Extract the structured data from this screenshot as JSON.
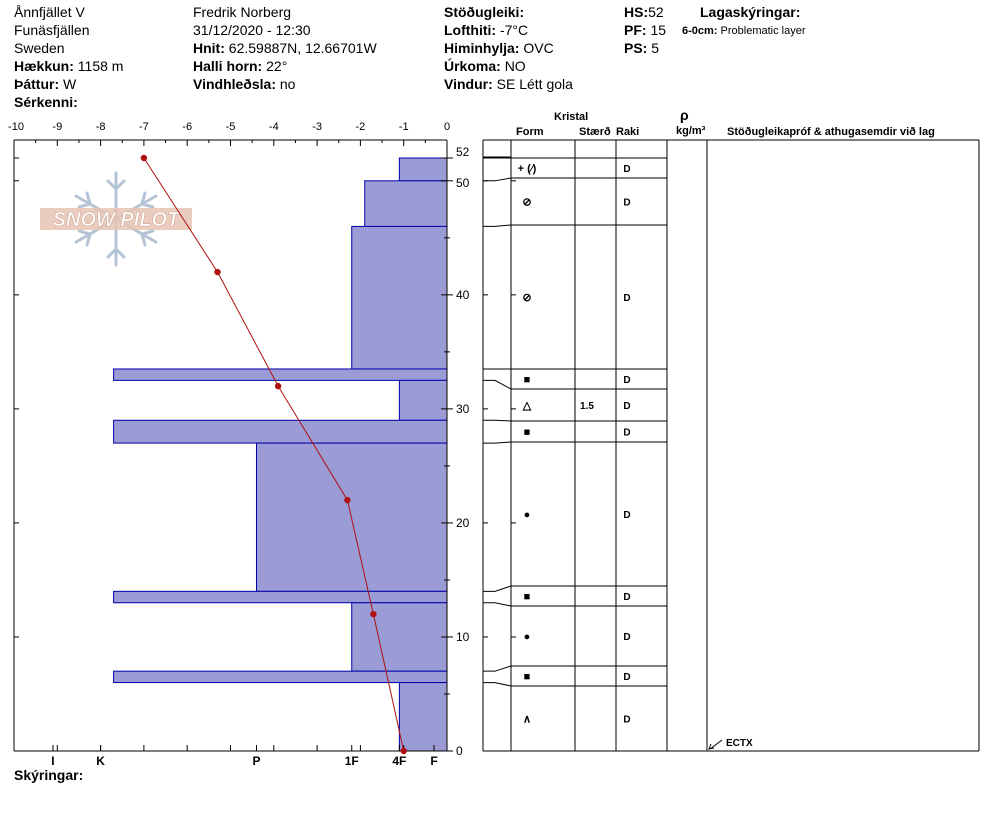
{
  "header": {
    "location": "Ånnfjället V",
    "region": "Funäsfjällen",
    "country": "Sweden",
    "elevation_label": "Hækkun:",
    "elevation_value": "1158 m",
    "aspect_label": "Þáttur:",
    "aspect_value": "W",
    "features_label": "Sérkenni:",
    "observer": "Fredrik Norberg",
    "datetime": "31/12/2020 - 12:30",
    "coords_label": "Hnit:",
    "coords_value": "62.59887N, 12.66701W",
    "slope_label": "Halli horn:",
    "slope_value": "22°",
    "wind_loading_label": "Vindhleðsla:",
    "wind_loading_value": "no",
    "stability_label": "Stöðugleiki:",
    "air_temp_label": "Lofthiti:",
    "air_temp_value": "-7°C",
    "sky_label": "Himinhylja:",
    "sky_value": "OVC",
    "precip_label": "Úrkoma:",
    "precip_value": "NO",
    "wind_label": "Vindur:",
    "wind_value": "SE  Létt gola",
    "hs_label": "HS:",
    "hs_value": "52",
    "pf_label": "PF:",
    "pf_value": "15",
    "ps_label": "PS:",
    "ps_value": "5",
    "legend_title": "Lagaskýringar:",
    "legend_item_range": "6-0cm:",
    "legend_item_text": "Problematic layer"
  },
  "logo_text": "SNOW PILOT",
  "comments_label": "Skýringar:",
  "table_headers": {
    "crystal": "Kristal",
    "form": "Form",
    "size": "Stærð",
    "moisture": "Raki",
    "rho": "ρ",
    "density_unit": "kg/m³",
    "tests": "Stöðugleikapróf & athugasemdir við lag"
  },
  "test_result": "ECTX",
  "colors": {
    "temp_line": "#b01010",
    "layer_fill": "#9b9bd6",
    "layer_stroke": "#0000aa"
  },
  "chart_data": {
    "type": "snow_profile",
    "temperature_axis": {
      "ticks": [
        "-10",
        "-9",
        "-8",
        "-7",
        "-6",
        "-5",
        "-4",
        "-3",
        "-2",
        "-1",
        "0"
      ],
      "range": [
        -10,
        0
      ]
    },
    "height_axis": {
      "ticks": [
        "0",
        "10",
        "20",
        "30",
        "40",
        "50",
        "52"
      ],
      "range": [
        0,
        52
      ]
    },
    "hardness_labels": [
      "I",
      "K",
      "P",
      "1F",
      "4F",
      "F"
    ],
    "temperature_profile": [
      {
        "height": 52,
        "temp": -7.0
      },
      {
        "height": 42,
        "temp": -5.3
      },
      {
        "height": 32,
        "temp": -3.9
      },
      {
        "height": 22,
        "temp": -2.3
      },
      {
        "height": 12,
        "temp": -1.7
      },
      {
        "height": 0,
        "temp": -1.0
      }
    ],
    "layers": [
      {
        "top": 52,
        "bottom": 50,
        "hardness_temp": -1.1,
        "form": "+ (⁄)",
        "size": "",
        "moisture": "D"
      },
      {
        "top": 50,
        "bottom": 46,
        "hardness_temp": -1.9,
        "form": "⊘",
        "size": "",
        "moisture": "D"
      },
      {
        "top": 46,
        "bottom": 33.5,
        "hardness_temp": -2.2,
        "form": "⊘",
        "size": "",
        "moisture": "D"
      },
      {
        "top": 33.5,
        "bottom": 32.5,
        "hardness_temp": -7.7,
        "form": "■",
        "size": "",
        "moisture": "D"
      },
      {
        "top": 32.5,
        "bottom": 29,
        "hardness_temp": -1.1,
        "form": "△",
        "size": "1.5",
        "moisture": "D"
      },
      {
        "top": 29,
        "bottom": 27,
        "hardness_temp": -7.7,
        "form": "■",
        "size": "",
        "moisture": "D"
      },
      {
        "top": 27,
        "bottom": 14,
        "hardness_temp": -4.4,
        "form": "●",
        "size": "",
        "moisture": "D"
      },
      {
        "top": 14,
        "bottom": 13,
        "hardness_temp": -7.7,
        "form": "■",
        "size": "",
        "moisture": "D"
      },
      {
        "top": 13,
        "bottom": 7,
        "hardness_temp": -2.2,
        "form": "●",
        "size": "",
        "moisture": "D"
      },
      {
        "top": 7,
        "bottom": 6,
        "hardness_temp": -7.7,
        "form": "■",
        "size": "",
        "moisture": "D"
      },
      {
        "top": 6,
        "bottom": 0,
        "hardness_temp": -1.1,
        "form": "∧",
        "size": "",
        "moisture": "D"
      }
    ],
    "tests": [
      {
        "height": 0,
        "result": "ECTX"
      }
    ]
  }
}
